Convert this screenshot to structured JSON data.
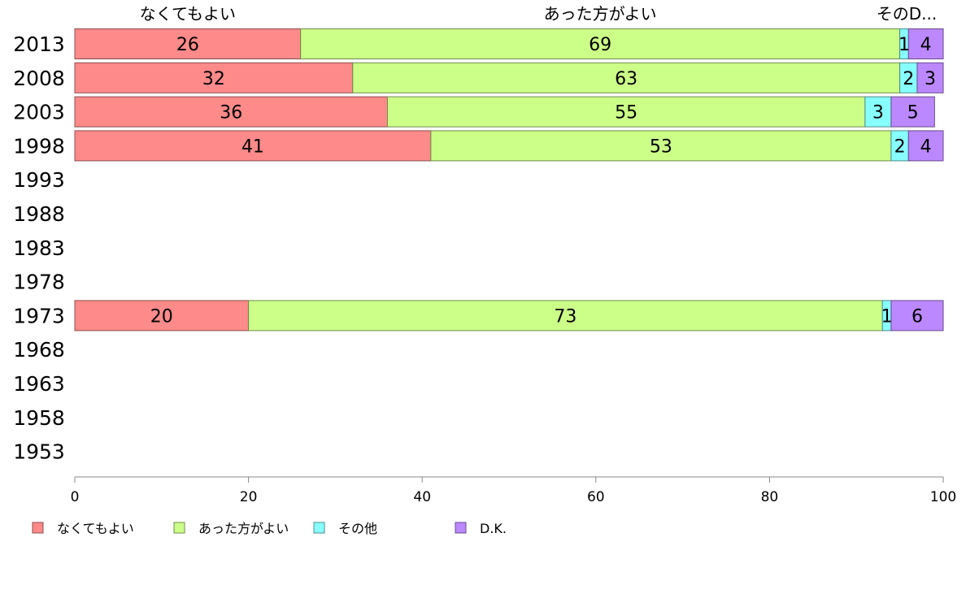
{
  "chart_data": {
    "type": "bar",
    "orientation": "horizontal",
    "stacked": true,
    "categories": [
      "2013",
      "2008",
      "2003",
      "1998",
      "1993",
      "1988",
      "1983",
      "1978",
      "1973",
      "1968",
      "1963",
      "1958",
      "1953"
    ],
    "series": [
      {
        "name": "なくてもよい",
        "color": "#ff8a8a",
        "values": [
          26,
          32,
          36,
          41,
          null,
          null,
          null,
          null,
          20,
          null,
          null,
          null,
          null
        ]
      },
      {
        "name": "あった方がよい",
        "color": "#ccff88",
        "values": [
          69,
          63,
          55,
          53,
          null,
          null,
          null,
          null,
          73,
          null,
          null,
          null,
          null
        ]
      },
      {
        "name": "その他",
        "color": "#88ffff",
        "values": [
          1,
          2,
          3,
          2,
          null,
          null,
          null,
          null,
          1,
          null,
          null,
          null,
          null
        ]
      },
      {
        "name": "D.K.",
        "color": "#bb88ff",
        "values": [
          4,
          3,
          5,
          4,
          null,
          null,
          null,
          null,
          6,
          null,
          null,
          null,
          null
        ]
      }
    ],
    "column_headers": [
      "なくてもよい",
      "あった方がよい",
      "そのD..."
    ],
    "xlim": [
      0,
      100
    ],
    "xticks": [
      0,
      20,
      40,
      60,
      80,
      100
    ],
    "legend_position": "bottom-left",
    "grid": false
  }
}
